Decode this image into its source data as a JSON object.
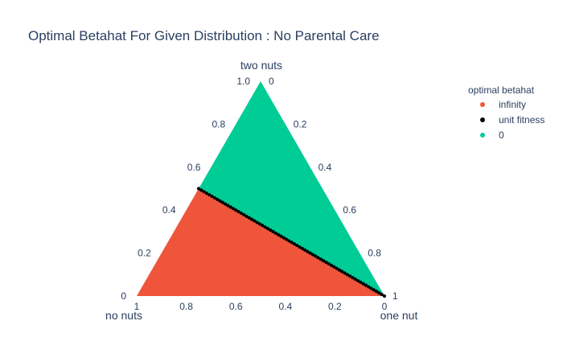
{
  "chart_data": {
    "type": "scatter",
    "subtype": "ternary",
    "title": "Optimal Betahat For Given Distribution : No Parental Care",
    "axes": {
      "a": {
        "title": "two nuts",
        "vertex": "top"
      },
      "b": {
        "title": "no nuts",
        "vertex": "bottom-left"
      },
      "c": {
        "title": "one nut",
        "vertex": "bottom-right"
      }
    },
    "tick_labels": {
      "a": [
        "0",
        "0.2",
        "0.4",
        "0.6",
        "0.8",
        "1.0"
      ],
      "b": [
        "0",
        "0.2",
        "0.4",
        "0.6",
        "0.8",
        "1"
      ],
      "c": [
        "0",
        "0.2",
        "0.4",
        "0.6",
        "0.8",
        "1"
      ]
    },
    "ticks": {
      "a": [
        0,
        0.2,
        0.4,
        0.6,
        0.8,
        1.0
      ],
      "b": [
        0,
        0.2,
        0.4,
        0.6,
        0.8,
        1.0
      ],
      "c": [
        0,
        0.2,
        0.4,
        0.6,
        0.8,
        1.0
      ]
    },
    "legend": {
      "title": "optimal betahat",
      "placement": "top-right"
    },
    "series": [
      {
        "name": "infinity",
        "color": "#ef553b",
        "region": "below boundary (two nuts < 0.5 × (1 − one nut))"
      },
      {
        "name": "unit fitness",
        "color": "#000000",
        "boundary": {
          "from": {
            "a": 0.5,
            "b": 0.5,
            "c": 0.0
          },
          "to": {
            "a": 0.0,
            "b": 0.0,
            "c": 1.0
          },
          "points": 70
        }
      },
      {
        "name": "0",
        "color": "#00cc96",
        "region": "above boundary"
      }
    ]
  }
}
